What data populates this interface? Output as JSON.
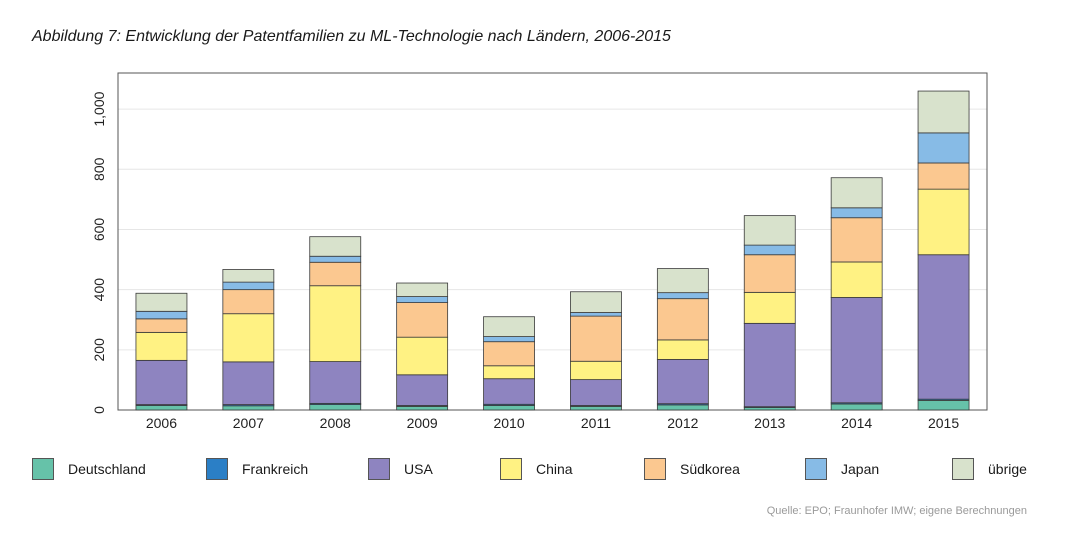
{
  "title": "Abbildung 7: Entwicklung der Patentfamilien zu ML-Technologie nach Ländern, 2006-2015",
  "source": "Quelle: EPO; Fraunhofer IMW; eigene Berechnungen",
  "chart_data": {
    "type": "bar",
    "stacked": true,
    "title": "Abbildung 7: Entwicklung der Patentfamilien zu ML-Technologie nach Ländern, 2006-2015",
    "xlabel": "",
    "ylabel": "",
    "ylim": [
      0,
      1120
    ],
    "yticks": [
      0,
      200,
      400,
      600,
      800,
      1000
    ],
    "ytick_labels": [
      "0",
      "200",
      "400",
      "600",
      "800",
      "1,000"
    ],
    "grid": true,
    "legend": "bottom",
    "categories": [
      "2006",
      "2007",
      "2008",
      "2009",
      "2010",
      "2011",
      "2012",
      "2013",
      "2014",
      "2015"
    ],
    "series": [
      {
        "name": "Deutschland",
        "color": "#66c2a9",
        "values": [
          15,
          14,
          18,
          12,
          15,
          12,
          17,
          8,
          20,
          32
        ]
      },
      {
        "name": "Frankreich",
        "color": "#2b7fc6",
        "values": [
          3,
          4,
          4,
          3,
          4,
          3,
          4,
          3,
          4,
          4
        ]
      },
      {
        "name": "USA",
        "color": "#8e84c0",
        "values": [
          147,
          142,
          139,
          102,
          85,
          86,
          147,
          277,
          350,
          480
        ]
      },
      {
        "name": "China",
        "color": "#fff283",
        "values": [
          93,
          160,
          252,
          125,
          43,
          61,
          65,
          103,
          118,
          218
        ]
      },
      {
        "name": "Südkorea",
        "color": "#fbc890",
        "values": [
          45,
          80,
          78,
          115,
          80,
          150,
          137,
          125,
          147,
          87
        ]
      },
      {
        "name": "Japan",
        "color": "#87bbe6",
        "values": [
          25,
          25,
          20,
          20,
          17,
          12,
          20,
          32,
          33,
          100
        ]
      },
      {
        "name": "übrige",
        "color": "#d8e2cc",
        "values": [
          60,
          42,
          65,
          45,
          66,
          69,
          80,
          98,
          100,
          139
        ]
      }
    ]
  }
}
